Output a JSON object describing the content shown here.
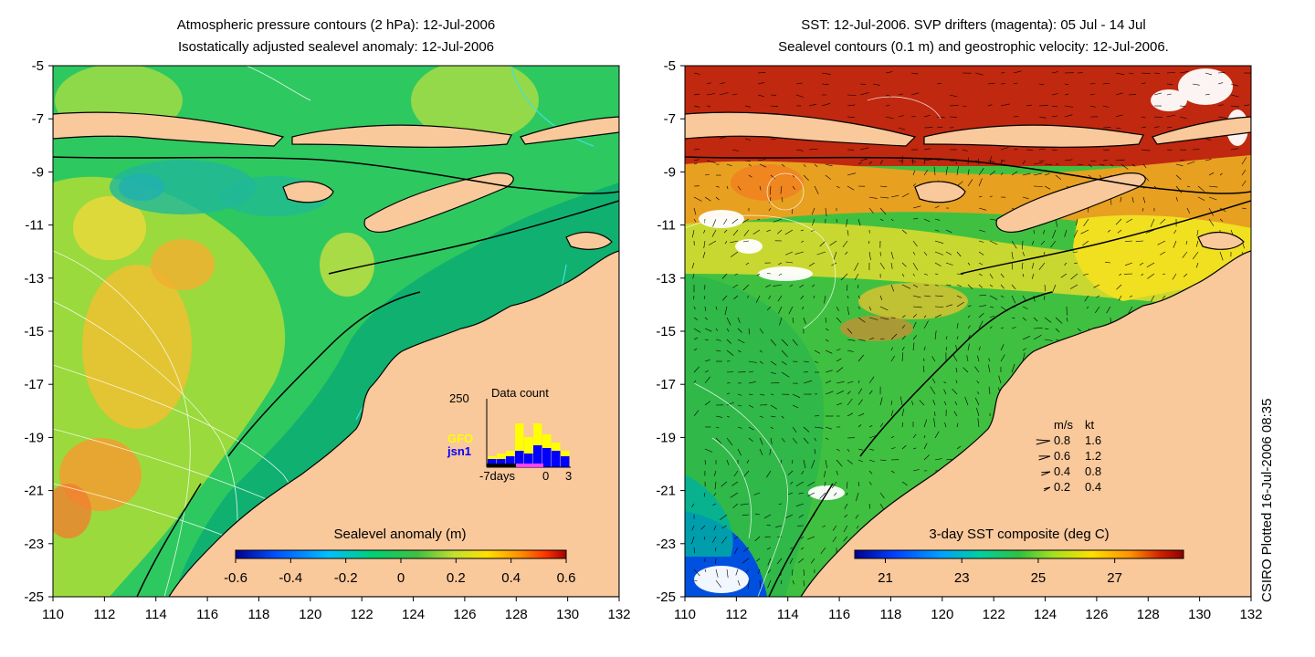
{
  "left_panel": {
    "title_line1": "Atmospheric pressure contours (2 hPa): 12-Jul-2006",
    "title_line2": "Isostatically adjusted sealevel anomaly: 12-Jul-2006",
    "colorbar": {
      "title": "Sealevel anomaly (m)",
      "ticks": [
        "-0.6",
        "-0.4",
        "-0.2",
        "0",
        "0.2",
        "0.4",
        "0.6"
      ],
      "range": [
        -0.6,
        0.6
      ]
    },
    "inset": {
      "title": "Data count",
      "ymax_label": "250",
      "series": [
        {
          "name": "GFO",
          "color": "#ffff00"
        },
        {
          "name": "jsn1",
          "color": "#0000ff"
        }
      ],
      "x_labels": [
        "-7days",
        "0",
        "3"
      ],
      "bars_total": [
        40,
        50,
        60,
        160,
        110,
        160,
        120,
        90,
        60
      ],
      "bars_jsn1": [
        30,
        30,
        40,
        60,
        50,
        80,
        70,
        60,
        40
      ]
    }
  },
  "right_panel": {
    "title_line1": "SST: 12-Jul-2006. SVP drifters (magenta): 05 Jul - 14 Jul",
    "title_line2": "Sealevel contours (0.1 m) and geostrophic velocity: 12-Jul-2006.",
    "colorbar": {
      "title": "3-day SST composite (deg C)",
      "ticks": [
        "21",
        "23",
        "25",
        "27"
      ],
      "range": [
        20.2,
        28.8
      ]
    },
    "legend": {
      "header_ms": "m/s",
      "header_kt": "kt",
      "rows": [
        {
          "ms": "0.8",
          "kt": "1.6"
        },
        {
          "ms": "0.6",
          "kt": "1.2"
        },
        {
          "ms": "0.4",
          "kt": "0.8"
        },
        {
          "ms": "0.2",
          "kt": "0.4"
        }
      ]
    }
  },
  "axes": {
    "lon_ticks": [
      "110",
      "112",
      "114",
      "116",
      "118",
      "120",
      "122",
      "124",
      "126",
      "128",
      "130",
      "132"
    ],
    "lat_ticks": [
      "-5",
      "-7",
      "-9",
      "-11",
      "-13",
      "-15",
      "-17",
      "-19",
      "-21",
      "-23",
      "-25"
    ],
    "lon_range": [
      110,
      132
    ],
    "lat_range": [
      -25,
      -5
    ]
  },
  "credit": "CSIRO Plotted 16-Jul-2006 08:35",
  "colors": {
    "land": "#f9c89b",
    "sla_colormap": [
      "#00008f",
      "#0050ff",
      "#00c0ff",
      "#00d070",
      "#40c040",
      "#c0e030",
      "#ffe000",
      "#ff9000",
      "#ff3000",
      "#a00000"
    ],
    "sst_colormap": [
      "#00008f",
      "#0040ff",
      "#00a0ff",
      "#00d0a0",
      "#30c040",
      "#a0e020",
      "#ffe000",
      "#ff9000",
      "#d02000",
      "#900000"
    ]
  }
}
